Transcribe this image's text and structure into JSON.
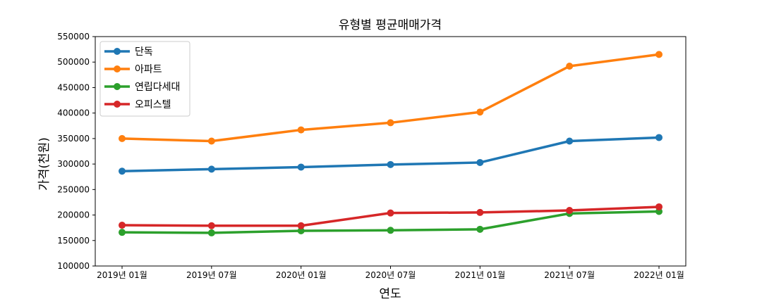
{
  "chart_data": {
    "type": "line",
    "title": "유형별 평균매매가격",
    "xlabel": "연도",
    "ylabel": "가격(천원)",
    "categories": [
      "2019년 01월",
      "2019년 07월",
      "2020년 01월",
      "2020년 07월",
      "2021년 01월",
      "2021년 07월",
      "2022년 01월"
    ],
    "ylim": [
      100000,
      550000
    ],
    "yticks": [
      100000,
      150000,
      200000,
      250000,
      300000,
      350000,
      400000,
      450000,
      500000,
      550000
    ],
    "grid": false,
    "legend_position": "top-left",
    "series": [
      {
        "name": "단독",
        "color": "#1f77b4",
        "values": [
          286000,
          290000,
          294000,
          299000,
          303000,
          345000,
          352000
        ]
      },
      {
        "name": "아파트",
        "color": "#ff7f0e",
        "values": [
          350000,
          345000,
          367000,
          381000,
          402000,
          492000,
          515000
        ]
      },
      {
        "name": "연립다세대",
        "color": "#2ca02c",
        "values": [
          166000,
          165000,
          169000,
          170000,
          172000,
          203000,
          207000
        ]
      },
      {
        "name": "오피스텔",
        "color": "#d62728",
        "values": [
          180000,
          179000,
          179000,
          204000,
          205000,
          209000,
          216000
        ]
      }
    ]
  }
}
